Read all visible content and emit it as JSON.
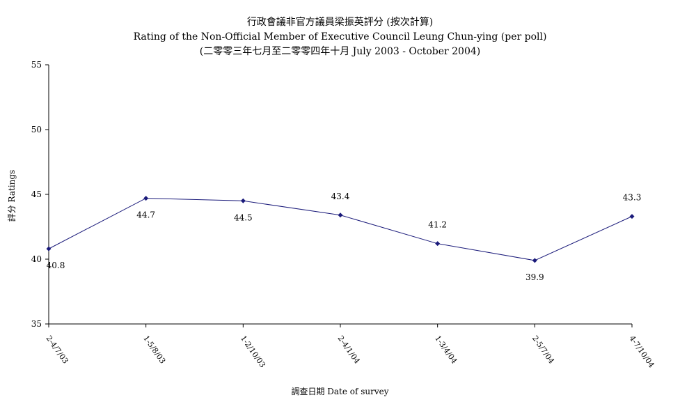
{
  "title_lines": [
    "行政會議非官方議員梁振英評分 (按次計算)",
    "Rating of the Non-Official Member of Executive Council Leung Chun-ying  (per poll)",
    "(二零零三年七月至二零零四年十月 July 2003 - October 2004)"
  ],
  "chart_data": {
    "type": "line",
    "title": "行政會議非官方議員梁振英評分 (按次計算) Rating of the Non-Official Member of Executive Council Leung Chun-ying  (per poll) (二零零三年七月至二零零四年十月 July 2003 - October 2004)",
    "xlabel": "調查日期 Date of survey",
    "ylabel": "評分 Ratings",
    "categories": [
      "2-4/7/03",
      "1-5/8/03",
      "1-2/10/03",
      "2-4/1/04",
      "1-3/4/04",
      "2-5/7/04",
      "4-7/10/04"
    ],
    "series": [
      {
        "values": [
          40.8,
          44.7,
          44.5,
          43.4,
          41.2,
          39.9,
          43.3
        ]
      }
    ],
    "data_labels": [
      "40.8",
      "44.7",
      "44.5",
      "43.4",
      "41.2",
      "39.9",
      "43.3"
    ],
    "ylim": [
      35,
      55
    ],
    "yticks": [
      35,
      40,
      45,
      50,
      55
    ],
    "grid": false,
    "legend": "none",
    "line_color": "#1a1a7a"
  }
}
